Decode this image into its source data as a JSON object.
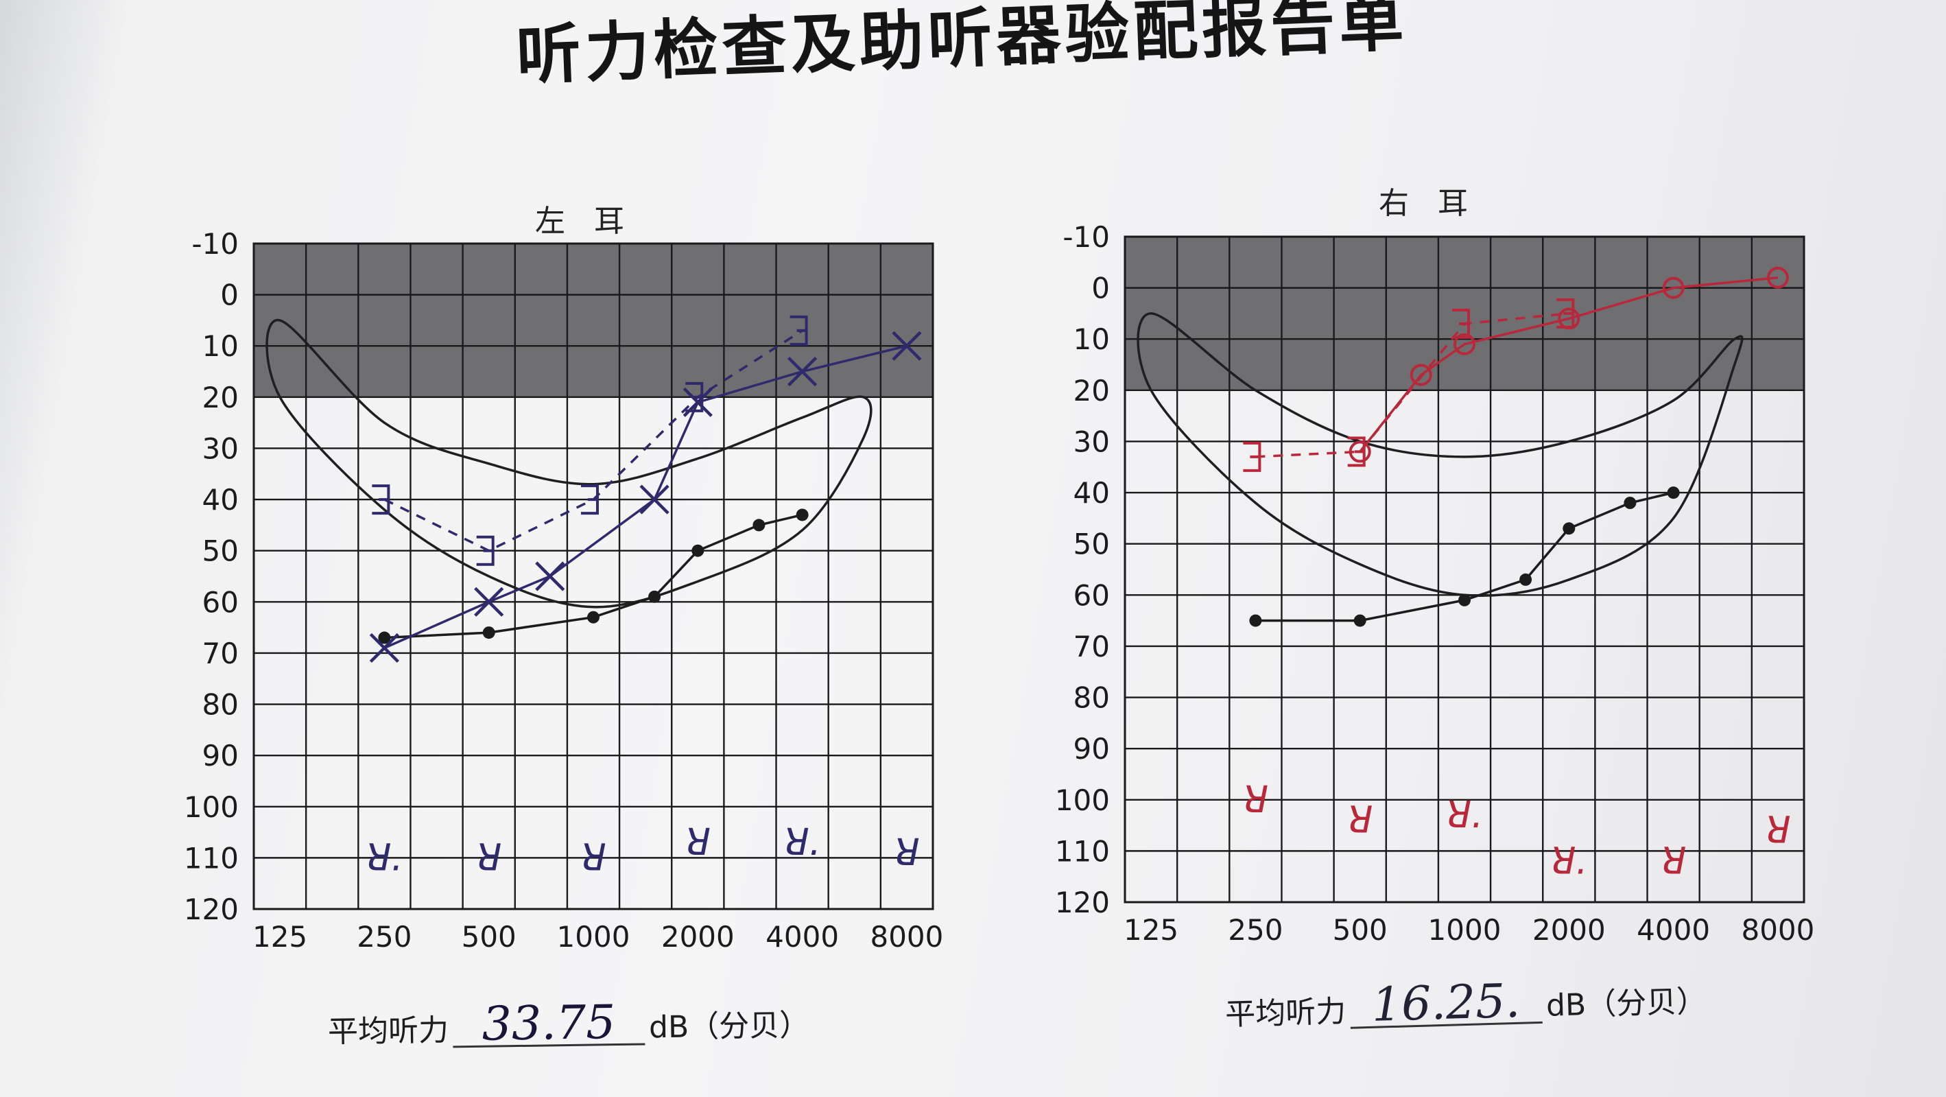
{
  "report": {
    "title": "听力检查及助听器验配报告单",
    "left_ear_label": "左 耳",
    "right_ear_label": "右 耳",
    "avg_label": "平均听力",
    "left_avg_value": "33.75",
    "right_avg_value": "16.25.",
    "avg_unit": "dB（分贝）"
  },
  "colors": {
    "left_ink": "#2f2a6b",
    "right_ink": "#b8283a",
    "grid": "#1a1a1a",
    "shade": "#6f6f72",
    "curve": "#1f1f1f"
  },
  "chart_data": [
    {
      "type": "line",
      "title": "左 耳",
      "x_ticks": [
        "125",
        "250",
        "500",
        "1000",
        "2000",
        "4000",
        "8000"
      ],
      "y_ticks": [
        "-10",
        "0",
        "10",
        "20",
        "30",
        "40",
        "50",
        "60",
        "70",
        "80",
        "90",
        "100",
        "110",
        "120"
      ],
      "ylim": [
        -10,
        120
      ],
      "y_inverted": true,
      "x_scale": "log2",
      "xlim": [
        125,
        8000
      ],
      "normal_zone": [
        -10,
        20
      ],
      "speech_banana": {
        "upper": [
          [
            125,
            5
          ],
          [
            250,
            25
          ],
          [
            500,
            33
          ],
          [
            1000,
            37
          ],
          [
            2000,
            32
          ],
          [
            4000,
            24
          ],
          [
            6000,
            20
          ]
        ],
        "lower": [
          [
            125,
            20
          ],
          [
            250,
            42
          ],
          [
            500,
            55
          ],
          [
            1000,
            61
          ],
          [
            2000,
            56
          ],
          [
            4000,
            46
          ],
          [
            6000,
            28
          ]
        ]
      },
      "series": [
        {
          "marker": "dot",
          "line": "solid",
          "points": [
            [
              250,
              67
            ],
            [
              500,
              66
            ],
            [
              1000,
              63
            ],
            [
              1500,
              59
            ],
            [
              2000,
              50
            ],
            [
              3000,
              45
            ],
            [
              4000,
              43
            ]
          ]
        },
        {
          "marker": "x",
          "line": "solid",
          "points": [
            [
              250,
              69
            ],
            [
              500,
              60
            ],
            [
              750,
              55
            ],
            [
              1500,
              40
            ],
            [
              2000,
              21
            ],
            [
              4000,
              15
            ],
            [
              8000,
              10
            ]
          ]
        },
        {
          "marker": "bracket",
          "line": "dashed",
          "points": [
            [
              250,
              40
            ],
            [
              500,
              50
            ],
            [
              1000,
              40
            ],
            [
              2000,
              20
            ],
            [
              4000,
              7
            ]
          ]
        }
      ],
      "annotations": [
        {
          "x": 250,
          "y": 110,
          "text": "ꓤ."
        },
        {
          "x": 500,
          "y": 110,
          "text": "ꓤ"
        },
        {
          "x": 1000,
          "y": 110,
          "text": "ꓤ"
        },
        {
          "x": 2000,
          "y": 107,
          "text": "ꓤ"
        },
        {
          "x": 4000,
          "y": 107,
          "text": "ꓤ."
        },
        {
          "x": 8000,
          "y": 109,
          "text": "ꓤ"
        }
      ]
    },
    {
      "type": "line",
      "title": "右 耳",
      "x_ticks": [
        "125",
        "250",
        "500",
        "1000",
        "2000",
        "4000",
        "8000"
      ],
      "y_ticks": [
        "-10",
        "0",
        "10",
        "20",
        "30",
        "40",
        "50",
        "60",
        "70",
        "80",
        "90",
        "100",
        "110",
        "120"
      ],
      "ylim": [
        -10,
        120
      ],
      "y_inverted": true,
      "x_scale": "log2",
      "xlim": [
        125,
        8000
      ],
      "normal_zone": [
        -10,
        20
      ],
      "speech_banana": {
        "upper": [
          [
            125,
            5
          ],
          [
            250,
            20
          ],
          [
            500,
            30
          ],
          [
            1000,
            33
          ],
          [
            2000,
            30
          ],
          [
            4000,
            22
          ],
          [
            6000,
            10
          ]
        ],
        "lower": [
          [
            125,
            20
          ],
          [
            250,
            42
          ],
          [
            500,
            54
          ],
          [
            1000,
            60
          ],
          [
            2000,
            57
          ],
          [
            4000,
            45
          ],
          [
            6000,
            15
          ]
        ]
      },
      "series": [
        {
          "marker": "dot",
          "line": "solid",
          "points": [
            [
              250,
              65
            ],
            [
              500,
              65
            ],
            [
              1000,
              61
            ],
            [
              1500,
              57
            ],
            [
              2000,
              47
            ],
            [
              3000,
              42
            ],
            [
              4000,
              40
            ]
          ]
        },
        {
          "marker": "circle",
          "line": "solid",
          "points": [
            [
              500,
              32
            ],
            [
              750,
              17
            ],
            [
              1000,
              11
            ],
            [
              2000,
              6
            ],
            [
              4000,
              0
            ],
            [
              8000,
              -2
            ]
          ]
        },
        {
          "marker": "bracket",
          "line": "dashed",
          "points": [
            [
              250,
              33
            ],
            [
              500,
              32
            ],
            [
              1000,
              7
            ],
            [
              2000,
              5
            ]
          ]
        }
      ],
      "annotations": [
        {
          "x": 250,
          "y": 100,
          "text": "ꓤ"
        },
        {
          "x": 500,
          "y": 104,
          "text": "ꓤ"
        },
        {
          "x": 1000,
          "y": 103,
          "text": "ꓤ."
        },
        {
          "x": 2000,
          "y": 112,
          "text": "ꓤ."
        },
        {
          "x": 4000,
          "y": 112,
          "text": "ꓤ"
        },
        {
          "x": 8000,
          "y": 106,
          "text": "ꓤ"
        }
      ]
    }
  ]
}
